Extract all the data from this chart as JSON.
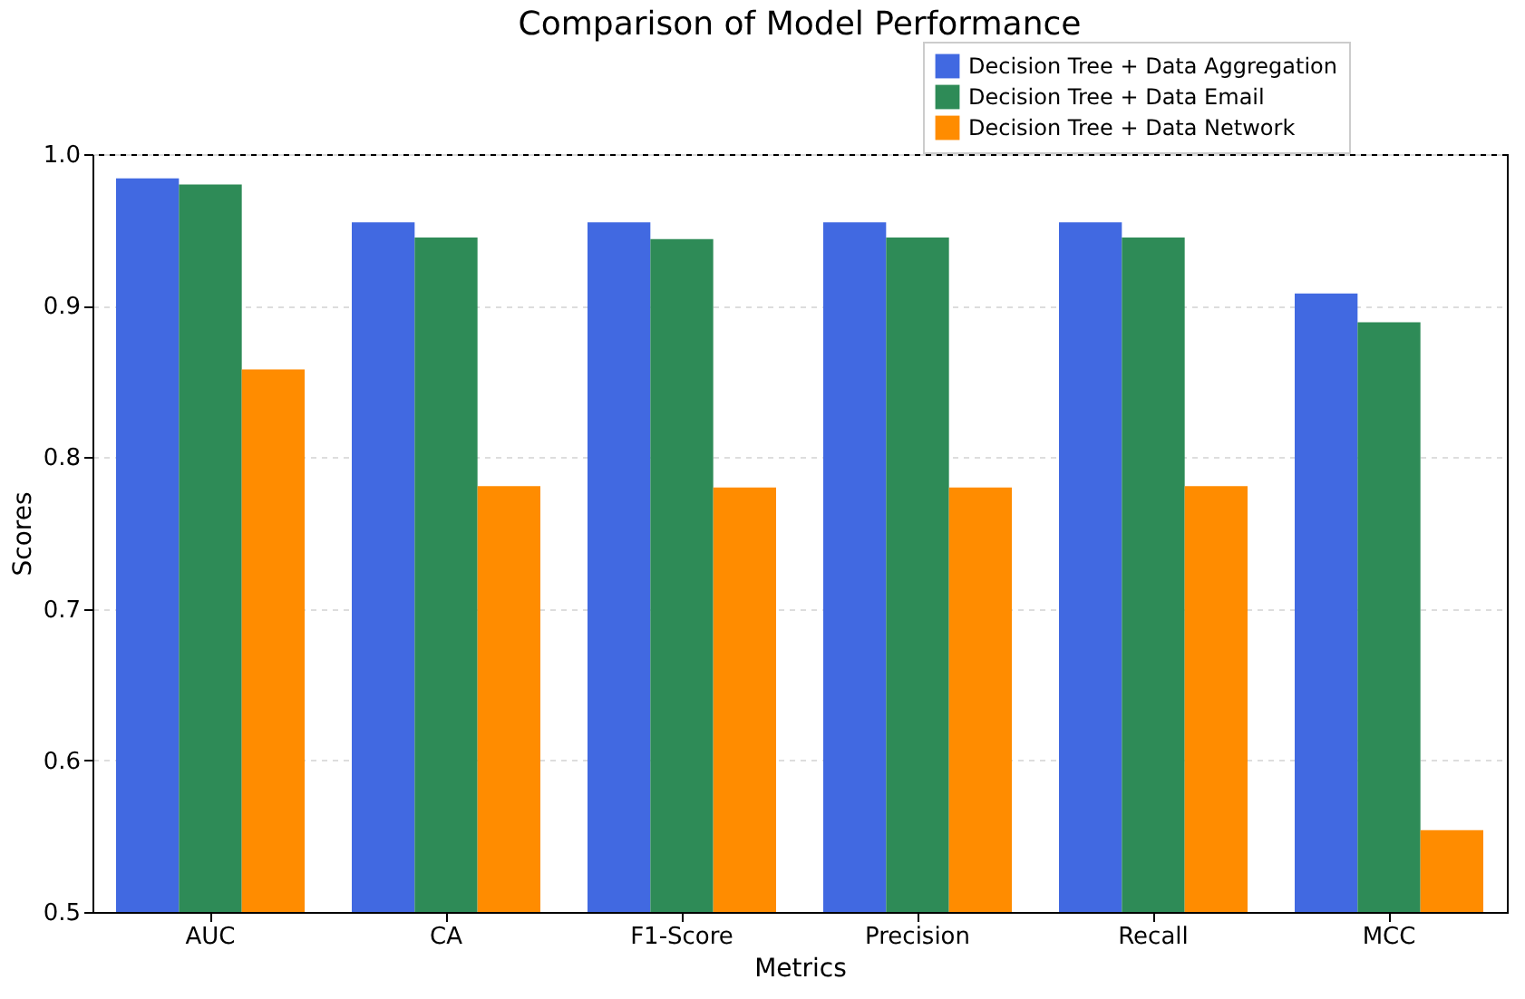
{
  "chart_data": {
    "type": "bar",
    "title": "Comparison of Model Performance",
    "xlabel": "Metrics",
    "ylabel": "Scores",
    "categories": [
      "AUC",
      "CA",
      "F1-Score",
      "Precision",
      "Recall",
      "MCC"
    ],
    "series": [
      {
        "name": "Decision Tree + Data Aggregation",
        "color": "#4169e1",
        "values": [
          0.984,
          0.955,
          0.955,
          0.955,
          0.955,
          0.908
        ]
      },
      {
        "name": "Decision Tree + Data Email",
        "color": "#2e8b57",
        "values": [
          0.98,
          0.945,
          0.944,
          0.945,
          0.945,
          0.889
        ]
      },
      {
        "name": "Decision Tree + Data Network",
        "color": "#ff8c00",
        "values": [
          0.858,
          0.781,
          0.78,
          0.78,
          0.781,
          0.554
        ]
      }
    ],
    "ylim": [
      0.5,
      1.0
    ],
    "yticks": [
      0.5,
      0.6,
      0.7,
      0.8,
      0.9,
      {
        "value": 1,
        "label": "1.0"
      }
    ],
    "grid": "y",
    "legend": "top right"
  }
}
